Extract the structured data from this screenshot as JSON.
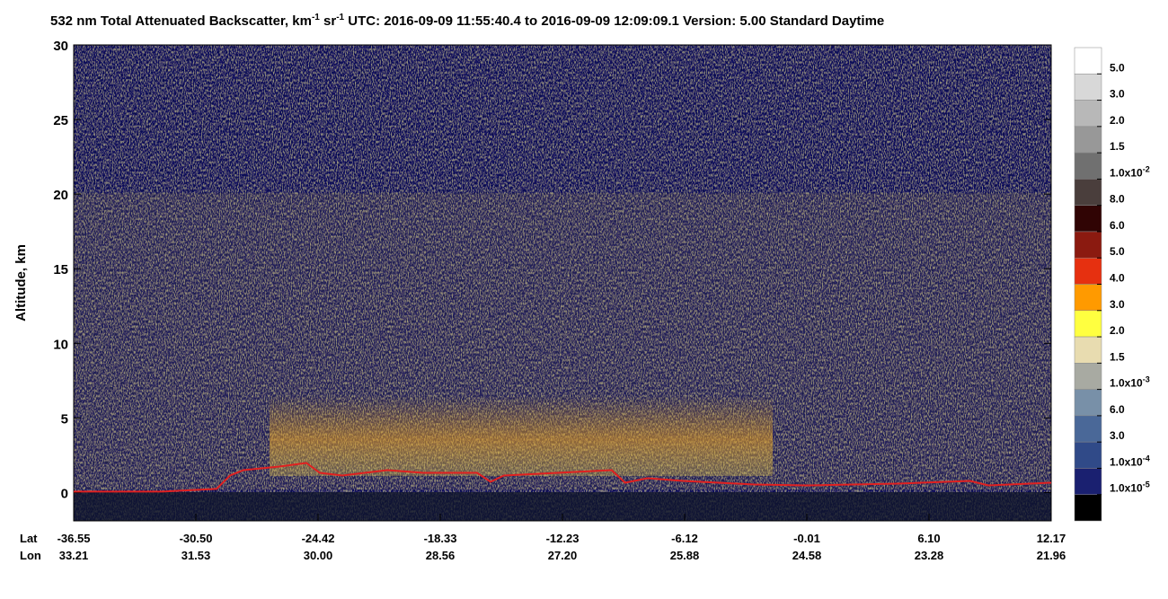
{
  "chart_data": {
    "type": "profile",
    "title": [
      "532 nm Total Attenuated Backscatter, km",
      "-1",
      " sr",
      "-1",
      "    UTC:  2016-09-09 11:55:40.4  to  2016-09-09 12:09:09.1    Version: 5.00  Standard  Daytime"
    ],
    "y_label": "Altitude, km",
    "ylim": [
      -1.9,
      30
    ],
    "yticks": [
      0,
      5,
      10,
      15,
      20,
      25,
      30
    ],
    "xlim": [
      -36.55,
      12.17
    ],
    "xticks": [
      {
        "value": -36.55,
        "label": "-36.55"
      },
      {
        "value": -30.5,
        "label": "-30.50"
      },
      {
        "value": -24.42,
        "label": "-24.42"
      },
      {
        "value": -18.33,
        "label": "-18.33"
      },
      {
        "value": -12.23,
        "label": "-12.23"
      },
      {
        "value": -6.12,
        "label": "-6.12"
      },
      {
        "value": -0.01,
        "label": "-0.01"
      },
      {
        "value": 6.1,
        "label": "6.10"
      },
      {
        "value": 12.17,
        "label": "12.17"
      }
    ],
    "lat_label": "Lat",
    "lon_label": "Lon",
    "lon_labels": [
      "33.21",
      "31.53",
      "30.00",
      "28.56",
      "27.20",
      "25.88",
      "24.58",
      "23.28",
      "21.96"
    ],
    "series": [
      {
        "color": "#e02020",
        "x": [
          -36.55,
          -32.16,
          -29.47,
          -28.8,
          -28.13,
          -26.34,
          -25.0,
          -24.33,
          -23.21,
          -20.97,
          -19.18,
          -16.49,
          -15.82,
          -15.15,
          -12.46,
          -9.77,
          -9.1,
          -7.98,
          -6.19,
          -2.61,
          0.08,
          4.56,
          8.14,
          9.04,
          12.17
        ],
        "values": [
          0.06,
          0.06,
          0.24,
          1.14,
          1.5,
          1.74,
          1.98,
          1.32,
          1.14,
          1.5,
          1.32,
          1.32,
          0.72,
          1.14,
          1.32,
          1.5,
          0.66,
          0.96,
          0.78,
          0.54,
          0.48,
          0.6,
          0.78,
          0.48,
          0.66
        ]
      }
    ],
    "colorbar": {
      "colors": [
        "#ffffff",
        "#d8d8d8",
        "#b8b8b8",
        "#989898",
        "#707070",
        "#4a3e3c",
        "#300404",
        "#8b1a10",
        "#e63010",
        "#ff9a00",
        "#ffff40",
        "#e8dcb0",
        "#a8aaa2",
        "#7890a8",
        "#4a6898",
        "#304a88",
        "#1a2070",
        "#000000"
      ],
      "labels": [
        "5.0",
        "3.0",
        "2.0",
        "1.5",
        [
          "1.0x10",
          "-2"
        ],
        "8.0",
        "6.0",
        "5.0",
        "4.0",
        "3.0",
        "2.0",
        "1.5",
        [
          "1.0x10",
          "-3"
        ],
        "6.0",
        "3.0",
        [
          "1.0x10",
          "-4"
        ],
        [
          "1.0x10",
          "-5"
        ]
      ]
    }
  }
}
